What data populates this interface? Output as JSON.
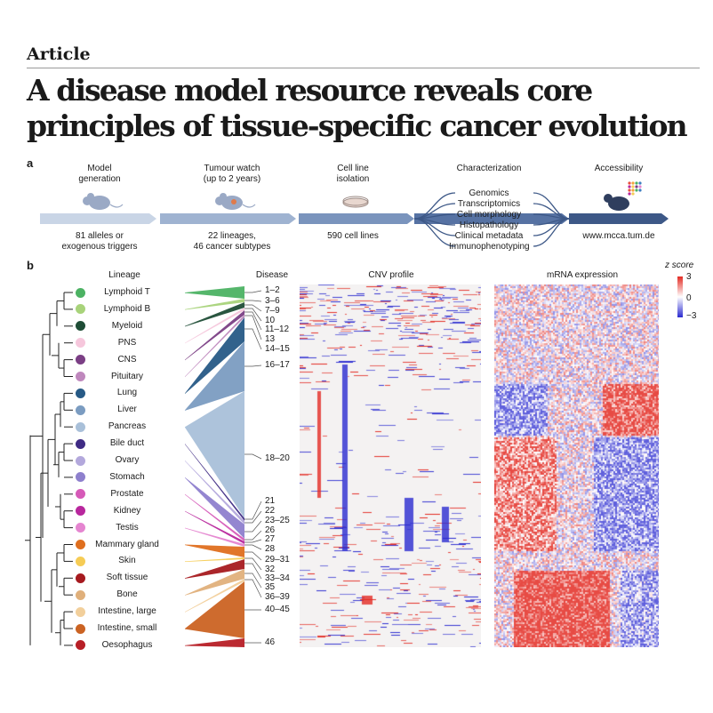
{
  "header": {
    "section": "Article",
    "title_line1": "A disease model resource reveals core",
    "title_line2": "principles of tissue-specific cancer evolution"
  },
  "panel_a": {
    "letter": "a",
    "stages": [
      {
        "title": "Model\ngeneration",
        "caption": "81 alleles or\nexogenous triggers"
      },
      {
        "title": "Tumour watch\n(up to 2 years)",
        "caption": "22 lineages,\n46 cancer subtypes"
      },
      {
        "title": "Cell line\nisolation",
        "caption": "590 cell lines"
      },
      {
        "title": "Characterization",
        "caption": ""
      },
      {
        "title": "Accessibility",
        "caption": "www.mcca.tum.de"
      }
    ],
    "characterization": [
      "Genomics",
      "Transcriptomics",
      "Cell morphology",
      "Histopathology",
      "Clinical metadata",
      "Immunophenotyping"
    ],
    "colors": {
      "arrow_light": "#c6d3e6",
      "arrow_dark": "#3e5a86"
    }
  },
  "panel_b": {
    "letter": "b",
    "headers": {
      "lineage": "Lineage",
      "disease": "Disease",
      "cnv": "CNV profile",
      "mrna": "mRNA expression"
    },
    "lineages": [
      {
        "name": "Lymphoid T",
        "color": "#4cb263"
      },
      {
        "name": "Lymphoid B",
        "color": "#a8d37a"
      },
      {
        "name": "Myeloid",
        "color": "#1f4d36"
      },
      {
        "name": "PNS",
        "color": "#f6c7dc"
      },
      {
        "name": "CNS",
        "color": "#7b3f85"
      },
      {
        "name": "Pituitary",
        "color": "#bf88bd"
      },
      {
        "name": "Lung",
        "color": "#275a86"
      },
      {
        "name": "Liver",
        "color": "#7b9cc1"
      },
      {
        "name": "Pancreas",
        "color": "#a9c0d9"
      },
      {
        "name": "Bile duct",
        "color": "#3f2b84"
      },
      {
        "name": "Ovary",
        "color": "#b3a8dc"
      },
      {
        "name": "Stomach",
        "color": "#8e80cd"
      },
      {
        "name": "Prostate",
        "color": "#d65ab8"
      },
      {
        "name": "Kidney",
        "color": "#b8279d"
      },
      {
        "name": "Testis",
        "color": "#e585d0"
      },
      {
        "name": "Mammary gland",
        "color": "#df6f1f"
      },
      {
        "name": "Skin",
        "color": "#f6cc55"
      },
      {
        "name": "Soft tissue",
        "color": "#a61a1f"
      },
      {
        "name": "Bone",
        "color": "#e0b07b"
      },
      {
        "name": "Intestine, large",
        "color": "#f2cf9b"
      },
      {
        "name": "Intestine, small",
        "color": "#cb6323"
      },
      {
        "name": "Oesophagus",
        "color": "#b71f26"
      }
    ],
    "disease_labels": [
      "1–2",
      "3–6",
      "7–9",
      "10",
      "11–12",
      "13",
      "14–15",
      "16–17",
      "18–20",
      "21",
      "22",
      "23–25",
      "26",
      "27",
      "28",
      "29–31",
      "32",
      "33–34",
      "35",
      "36–39",
      "40–45",
      "46"
    ],
    "zscore": {
      "title": "z score",
      "max": "3",
      "mid": "0",
      "min": "−3",
      "high_color": "#e32b23",
      "low_color": "#2a2ad0"
    }
  }
}
